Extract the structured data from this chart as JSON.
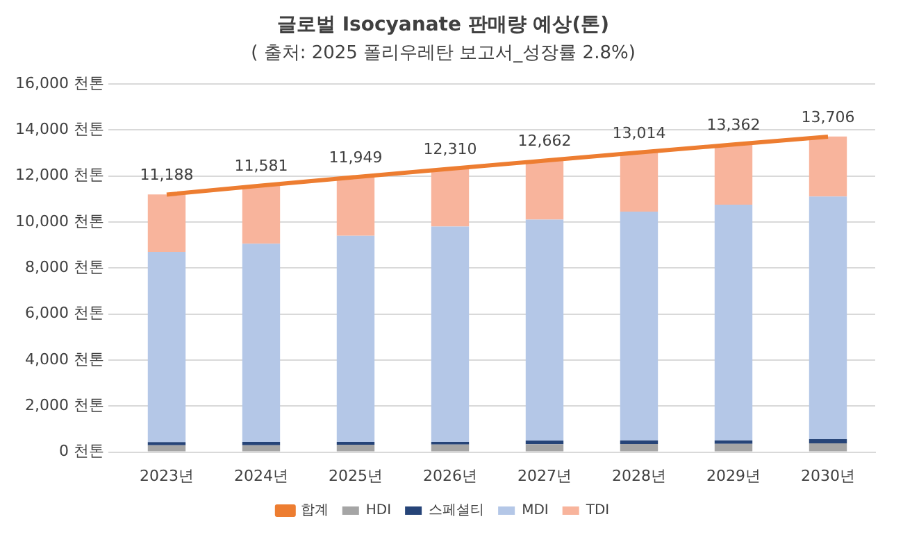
{
  "chart_data": {
    "type": "bar",
    "stacked": true,
    "title": "글로벌 Isocyanate 판매량 예상(톤)",
    "subtitle": "( 출처: 2025 폴리우레탄 보고서_성장률 2.8%)",
    "categories": [
      "2023년",
      "2024년",
      "2025년",
      "2026년",
      "2027년",
      "2028년",
      "2029년",
      "2030년"
    ],
    "series": [
      {
        "name": "HDI",
        "color": "#a5a5a5",
        "values": [
          300,
          300,
          320,
          330,
          340,
          350,
          360,
          380
        ]
      },
      {
        "name": "스페셜티",
        "color": "#264478",
        "values": [
          130,
          140,
          120,
          110,
          160,
          160,
          150,
          180
        ]
      },
      {
        "name": "MDI",
        "color": "#b4c7e7",
        "values": [
          8270,
          8610,
          8960,
          9360,
          9600,
          9940,
          10240,
          10540
        ]
      },
      {
        "name": "TDI",
        "color": "#f8b49c",
        "values": [
          2490,
          2530,
          2550,
          2510,
          2560,
          2560,
          2610,
          2610
        ]
      },
      {
        "name": "합계",
        "type": "line",
        "color": "#ed7d31",
        "marker": "none",
        "values": [
          11188,
          11581,
          11949,
          12310,
          12662,
          13014,
          13362,
          13706
        ],
        "value_labels": [
          "11,188",
          "11,581",
          "11,949",
          "12,310",
          "12,662",
          "13,014",
          "13,362",
          "13,706"
        ]
      }
    ],
    "ylim": [
      0,
      16000
    ],
    "yticks": [
      {
        "value": 0,
        "label": "0 천톤"
      },
      {
        "value": 2000,
        "label": "2,000 천톤"
      },
      {
        "value": 4000,
        "label": "4,000 천톤"
      },
      {
        "value": 6000,
        "label": "6,000 천톤"
      },
      {
        "value": 8000,
        "label": "8,000 천톤"
      },
      {
        "value": 10000,
        "label": "10,000 천톤"
      },
      {
        "value": 12000,
        "label": "12,000 천톤"
      },
      {
        "value": 14000,
        "label": "14,000 천톤"
      },
      {
        "value": 16000,
        "label": "16,000 천톤"
      }
    ],
    "grid": "y",
    "legend": "bottom"
  }
}
